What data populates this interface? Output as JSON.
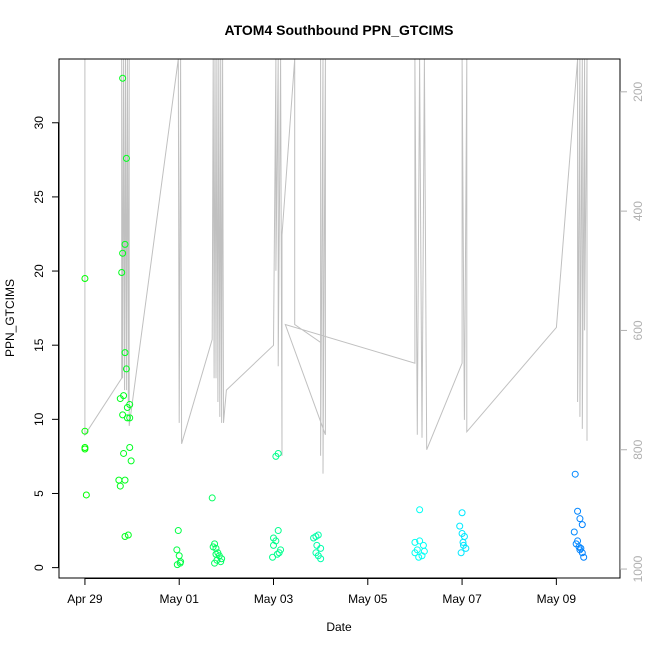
{
  "chart_data": {
    "type": "scatter",
    "title": "ATOM4 Southbound PPN_GTCIMS",
    "xlabel": "Date",
    "ylabel": "PPN_GTCIMS",
    "x_unit": "days since Apr 29",
    "xlim": [
      -0.55,
      11.35
    ],
    "ylim": [
      -0.7,
      34.3
    ],
    "x_ticks": [
      {
        "value": 0,
        "label": "Apr 29"
      },
      {
        "value": 2,
        "label": "May 01"
      },
      {
        "value": 4,
        "label": "May 03"
      },
      {
        "value": 6,
        "label": "May 05"
      },
      {
        "value": 8,
        "label": "May 07"
      },
      {
        "value": 10,
        "label": "May 09"
      }
    ],
    "y_ticks": [
      0,
      5,
      10,
      15,
      20,
      25,
      30
    ],
    "y2_ticks": [
      200,
      400,
      600,
      800,
      1000
    ],
    "y2lim": [
      1015,
      145
    ],
    "grid": false,
    "legend": "none",
    "colors": {
      "scatter_gradient": [
        "#00ff00",
        "#00ffff",
        "#0080ff"
      ],
      "secondary_line": "#c0c0c0",
      "right_axis": "#b0b0b0"
    },
    "series": [
      {
        "type": "scatter",
        "points": [
          [
            0.0,
            19.5
          ],
          [
            0.0,
            9.2
          ],
          [
            0.0,
            8.0
          ],
          [
            0.0,
            8.1
          ],
          [
            0.03,
            4.9
          ],
          [
            0.8,
            33.0
          ],
          [
            0.88,
            27.6
          ],
          [
            0.85,
            21.8
          ],
          [
            0.8,
            21.2
          ],
          [
            0.78,
            19.9
          ],
          [
            0.85,
            14.5
          ],
          [
            0.88,
            13.4
          ],
          [
            0.75,
            11.4
          ],
          [
            0.82,
            11.6
          ],
          [
            0.95,
            11.0
          ],
          [
            0.9,
            10.8
          ],
          [
            0.8,
            10.3
          ],
          [
            0.9,
            10.1
          ],
          [
            0.95,
            10.1
          ],
          [
            0.95,
            8.1
          ],
          [
            0.82,
            7.7
          ],
          [
            0.98,
            7.2
          ],
          [
            0.72,
            5.9
          ],
          [
            0.85,
            5.9
          ],
          [
            0.75,
            5.5
          ],
          [
            0.85,
            2.1
          ],
          [
            0.92,
            2.2
          ],
          [
            1.98,
            2.5
          ],
          [
            1.95,
            1.2
          ],
          [
            2.0,
            0.8
          ],
          [
            2.03,
            0.4
          ],
          [
            1.96,
            0.2
          ],
          [
            2.02,
            0.3
          ],
          [
            2.7,
            4.7
          ],
          [
            2.75,
            1.6
          ],
          [
            2.72,
            1.4
          ],
          [
            2.78,
            1.3
          ],
          [
            2.85,
            0.8
          ],
          [
            2.8,
            0.5
          ],
          [
            2.75,
            0.3
          ],
          [
            2.88,
            0.4
          ],
          [
            2.82,
            1.0
          ],
          [
            2.9,
            0.6
          ],
          [
            2.78,
            0.9
          ],
          [
            4.05,
            7.5
          ],
          [
            4.1,
            7.7
          ],
          [
            4.1,
            2.5
          ],
          [
            4.0,
            2.0
          ],
          [
            4.05,
            1.8
          ],
          [
            4.15,
            1.2
          ],
          [
            4.0,
            1.5
          ],
          [
            4.08,
            0.9
          ],
          [
            4.12,
            1.0
          ],
          [
            3.98,
            0.7
          ],
          [
            4.9,
            2.1
          ],
          [
            4.95,
            2.2
          ],
          [
            4.85,
            2.0
          ],
          [
            4.92,
            1.5
          ],
          [
            5.0,
            1.3
          ],
          [
            4.9,
            1.0
          ],
          [
            5.0,
            0.6
          ],
          [
            4.95,
            0.8
          ],
          [
            7.1,
            3.9
          ],
          [
            7.0,
            1.7
          ],
          [
            7.1,
            1.8
          ],
          [
            7.05,
            1.2
          ],
          [
            7.2,
            1.1
          ],
          [
            7.0,
            1.0
          ],
          [
            7.15,
            0.8
          ],
          [
            7.08,
            0.7
          ],
          [
            7.18,
            1.5
          ],
          [
            8.0,
            3.7
          ],
          [
            7.95,
            2.8
          ],
          [
            8.05,
            2.1
          ],
          [
            8.0,
            2.3
          ],
          [
            8.03,
            1.5
          ],
          [
            7.98,
            1.0
          ],
          [
            8.08,
            1.3
          ],
          [
            8.02,
            1.7
          ],
          [
            10.4,
            6.3
          ],
          [
            10.45,
            3.8
          ],
          [
            10.5,
            3.3
          ],
          [
            10.55,
            2.9
          ],
          [
            10.38,
            2.4
          ],
          [
            10.45,
            1.8
          ],
          [
            10.48,
            1.4
          ],
          [
            10.52,
            1.3
          ],
          [
            10.42,
            1.6
          ],
          [
            10.55,
            1.0
          ],
          [
            10.58,
            0.7
          ],
          [
            10.5,
            1.2
          ]
        ]
      },
      {
        "type": "line",
        "axis": "right",
        "name": "",
        "points": [
          [
            0.0,
            145
          ],
          [
            0.0,
            775
          ],
          [
            0.78,
            680
          ],
          [
            0.78,
            145
          ],
          [
            0.8,
            680
          ],
          [
            0.82,
            145
          ],
          [
            0.84,
            700
          ],
          [
            0.86,
            145
          ],
          [
            0.88,
            700
          ],
          [
            0.9,
            145
          ],
          [
            0.92,
            720
          ],
          [
            0.94,
            145
          ],
          [
            0.94,
            760
          ],
          [
            1.98,
            145
          ],
          [
            2.0,
            755
          ],
          [
            2.03,
            145
          ],
          [
            2.05,
            790
          ],
          [
            2.7,
            615
          ],
          [
            2.72,
            145
          ],
          [
            2.74,
            680
          ],
          [
            2.76,
            145
          ],
          [
            2.78,
            680
          ],
          [
            2.8,
            145
          ],
          [
            2.82,
            720
          ],
          [
            2.84,
            145
          ],
          [
            2.86,
            745
          ],
          [
            2.88,
            145
          ],
          [
            2.9,
            755
          ],
          [
            2.92,
            145
          ],
          [
            2.94,
            755
          ],
          [
            3.0,
            700
          ],
          [
            4.0,
            625
          ],
          [
            4.05,
            145
          ],
          [
            4.05,
            500
          ],
          [
            4.1,
            145
          ],
          [
            4.1,
            660
          ],
          [
            4.15,
            145
          ],
          [
            4.18,
            810
          ],
          [
            4.18,
            440
          ],
          [
            4.45,
            145
          ],
          [
            4.45,
            590
          ],
          [
            5.0,
            620
          ],
          [
            5.0,
            145
          ],
          [
            5.0,
            810
          ],
          [
            5.05,
            145
          ],
          [
            5.05,
            840
          ],
          [
            5.1,
            145
          ],
          [
            5.1,
            775
          ],
          [
            4.25,
            590
          ],
          [
            7.0,
            655
          ],
          [
            7.0,
            145
          ],
          [
            7.05,
            775
          ],
          [
            7.1,
            145
          ],
          [
            7.15,
            780
          ],
          [
            7.2,
            145
          ],
          [
            7.25,
            800
          ],
          [
            8.0,
            655
          ],
          [
            8.0,
            145
          ],
          [
            8.05,
            750
          ],
          [
            8.1,
            145
          ],
          [
            8.1,
            770
          ],
          [
            10.0,
            595
          ],
          [
            10.45,
            145
          ],
          [
            10.45,
            720
          ],
          [
            10.5,
            145
          ],
          [
            10.5,
            745
          ],
          [
            10.55,
            145
          ],
          [
            10.55,
            765
          ],
          [
            10.6,
            145
          ],
          [
            10.6,
            600
          ],
          [
            10.65,
            145
          ],
          [
            10.65,
            785
          ]
        ]
      }
    ]
  }
}
